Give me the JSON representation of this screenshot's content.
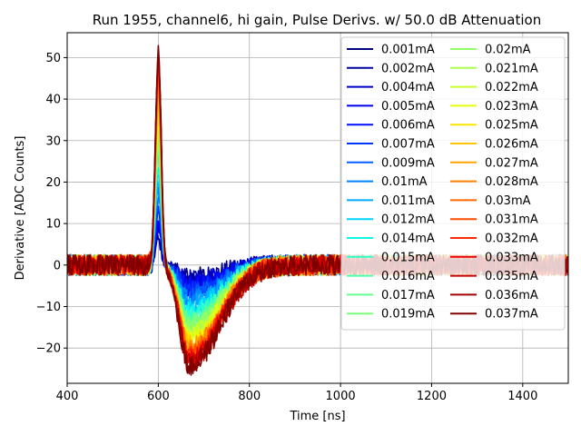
{
  "chart_data": {
    "type": "line",
    "title": "Run 1955, channel6, hi gain, Pulse Derivs. w/ 50.0 dB Attenuation",
    "xlabel": "Time [ns]",
    "ylabel": "Derivative [ADC Counts]",
    "xlim": [
      400,
      1500
    ],
    "ylim": [
      -28.5,
      56
    ],
    "grid": true,
    "legend_location": "upper-right",
    "legend_columns": 2,
    "x_ticks": [
      400,
      600,
      800,
      1000,
      1200,
      1400
    ],
    "y_ticks": [
      -20,
      -10,
      0,
      10,
      20,
      30,
      40,
      50
    ],
    "pulse_shape": {
      "peak_time_ns": 600,
      "undershoot_time_ns": 668,
      "recovery_time_ns": 900,
      "noise_amplitude": 2.5
    },
    "series": [
      {
        "name": "0.001mA",
        "color": "#00007f",
        "peak": 6,
        "trough": -3
      },
      {
        "name": "0.002mA",
        "color": "#00009f",
        "peak": 7,
        "trough": -3.5
      },
      {
        "name": "0.004mA",
        "color": "#0000c8",
        "peak": 9,
        "trough": -4
      },
      {
        "name": "0.005mA",
        "color": "#0000ed",
        "peak": 10,
        "trough": -5
      },
      {
        "name": "0.006mA",
        "color": "#0010ff",
        "peak": 12,
        "trough": -5.5
      },
      {
        "name": "0.007mA",
        "color": "#0038ff",
        "peak": 14,
        "trough": -6.5
      },
      {
        "name": "0.009mA",
        "color": "#0060ff",
        "peak": 16,
        "trough": -7.5
      },
      {
        "name": "0.01mA",
        "color": "#0084ff",
        "peak": 18,
        "trough": -8.5
      },
      {
        "name": "0.011mA",
        "color": "#00acff",
        "peak": 20,
        "trough": -9.5
      },
      {
        "name": "0.012mA",
        "color": "#00d4ff",
        "peak": 22,
        "trough": -10.5
      },
      {
        "name": "0.014mA",
        "color": "#0ff8e7",
        "peak": 24,
        "trough": -11.5
      },
      {
        "name": "0.015mA",
        "color": "#2cffca",
        "peak": 26,
        "trough": -12.5
      },
      {
        "name": "0.016mA",
        "color": "#4dffaa",
        "peak": 27.5,
        "trough": -13.3
      },
      {
        "name": "0.017mA",
        "color": "#66ff90",
        "peak": 29,
        "trough": -14
      },
      {
        "name": "0.019mA",
        "color": "#7dff7a",
        "peak": 30.5,
        "trough": -14.8
      },
      {
        "name": "0.02mA",
        "color": "#90ff66",
        "peak": 32,
        "trough": -15.5
      },
      {
        "name": "0.021mA",
        "color": "#aaff4d",
        "peak": 33.5,
        "trough": -16.3
      },
      {
        "name": "0.022mA",
        "color": "#caff2c",
        "peak": 35,
        "trough": -17
      },
      {
        "name": "0.023mA",
        "color": "#e7ff0f",
        "peak": 36.5,
        "trough": -17.8
      },
      {
        "name": "0.025mA",
        "color": "#ffe600",
        "peak": 38,
        "trough": -18.5
      },
      {
        "name": "0.026mA",
        "color": "#ffc400",
        "peak": 39.5,
        "trough": -19.2
      },
      {
        "name": "0.027mA",
        "color": "#ffa300",
        "peak": 41,
        "trough": -19.8
      },
      {
        "name": "0.028mA",
        "color": "#ff8200",
        "peak": 42.5,
        "trough": -20.4
      },
      {
        "name": "0.03mA",
        "color": "#ff6800",
        "peak": 44,
        "trough": -21
      },
      {
        "name": "0.031mA",
        "color": "#ff4a00",
        "peak": 45.5,
        "trough": -21.6
      },
      {
        "name": "0.032mA",
        "color": "#ff2a00",
        "peak": 47,
        "trough": -22.2
      },
      {
        "name": "0.033mA",
        "color": "#ed0000",
        "peak": 48.5,
        "trough": -22.8
      },
      {
        "name": "0.035mA",
        "color": "#c80000",
        "peak": 49.5,
        "trough": -23.4
      },
      {
        "name": "0.036mA",
        "color": "#a00000",
        "peak": 50.5,
        "trough": -24
      },
      {
        "name": "0.037mA",
        "color": "#7f0000",
        "peak": 52,
        "trough": -24.5
      }
    ]
  }
}
